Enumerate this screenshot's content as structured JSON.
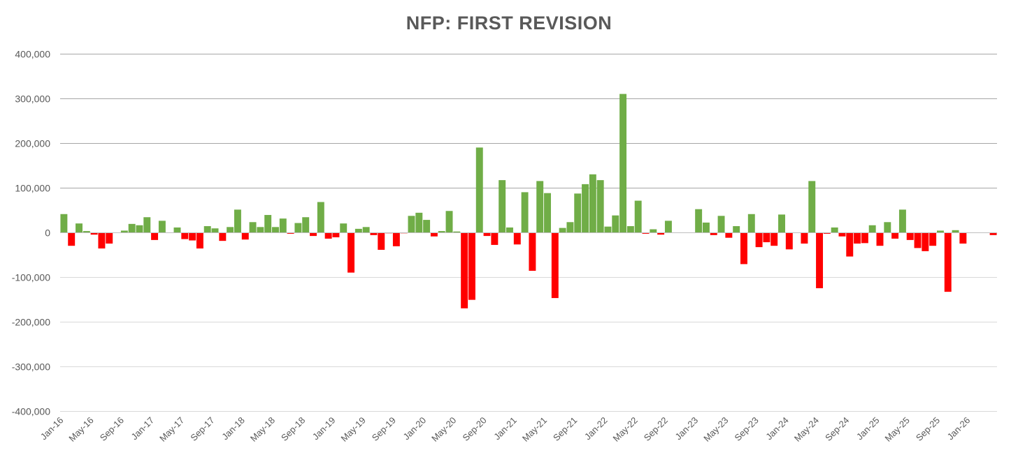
{
  "chart_data": {
    "type": "bar",
    "title": "NFP: FIRST REVISION",
    "xlabel": "",
    "ylabel": "",
    "ylim": [
      -400000,
      400000
    ],
    "yticks": [
      400000,
      300000,
      200000,
      100000,
      0,
      -100000,
      -200000,
      -300000,
      -400000
    ],
    "ytick_labels": [
      "400,000",
      "300,000",
      "200,000",
      "100,000",
      "0",
      "-100,000",
      "-200,000",
      "-300,000",
      "-400,000"
    ],
    "x_tick_labels": [
      "Jan-16",
      "May-16",
      "Sep-16",
      "Jan-17",
      "May-17",
      "Sep-17",
      "Jan-18",
      "May-18",
      "Sep-18",
      "Jan-19",
      "May-19",
      "Sep-19",
      "Jan-20",
      "May-20",
      "Sep-20",
      "Jan-21",
      "May-21",
      "Sep-21",
      "Jan-22",
      "May-22",
      "Sep-22",
      "Jan-23",
      "May-23",
      "Sep-23",
      "Jan-24",
      "May-24",
      "Sep-24",
      "Jan-25",
      "May-25",
      "Sep-25",
      "Jan-26"
    ],
    "x_start": "Jan-16",
    "x_end": "Jan-26",
    "grid": true,
    "positive_color": "#70ad47",
    "negative_color": "#ff0000",
    "values": [
      41000,
      -30000,
      20000,
      3000,
      -5000,
      -36000,
      -25000,
      0,
      4000,
      19000,
      16000,
      34000,
      -17000,
      26000,
      0,
      11000,
      -15000,
      -18000,
      -36000,
      14000,
      9000,
      -19000,
      12000,
      51000,
      -16000,
      23000,
      12000,
      39000,
      12000,
      31000,
      -3000,
      21000,
      34000,
      -8000,
      68000,
      -14000,
      -11000,
      20000,
      -90000,
      8000,
      12000,
      -6000,
      -39000,
      -2000,
      -31000,
      -2000,
      37000,
      44000,
      28000,
      -9000,
      3000,
      48000,
      2000,
      -170000,
      -151000,
      190000,
      -8000,
      -28000,
      117000,
      11000,
      -27000,
      90000,
      -86000,
      115000,
      88000,
      -147000,
      10000,
      23000,
      87000,
      108000,
      130000,
      117000,
      13000,
      38000,
      310000,
      14000,
      71000,
      -3000,
      7000,
      -5000,
      26000,
      0,
      0,
      0,
      52000,
      22000,
      -6000,
      37000,
      -12000,
      14000,
      -71000,
      41000,
      -33000,
      -22000,
      -30000,
      40000,
      -38000,
      0,
      -25000,
      115000,
      -125000,
      -3000,
      11000,
      -9000,
      -54000,
      -25000,
      -24000,
      16000,
      -30000,
      23000,
      -14000,
      51000,
      -17000,
      -35000,
      -42000,
      -30000,
      4000,
      -133000,
      5000,
      -25000,
      0,
      0,
      0,
      -6000
    ]
  }
}
